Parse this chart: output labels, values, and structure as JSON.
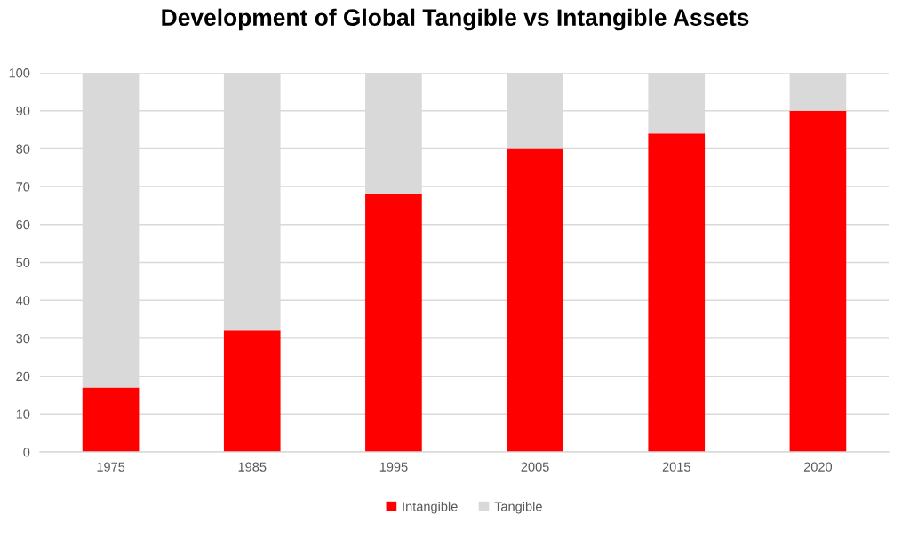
{
  "chart_data": {
    "type": "bar",
    "title": "Development of Global Tangible vs Intangible Assets",
    "categories": [
      "1975",
      "1985",
      "1995",
      "2005",
      "2015",
      "2020"
    ],
    "series": [
      {
        "name": "Intangible",
        "color": "#ff0000",
        "values": [
          17,
          32,
          68,
          80,
          84,
          90
        ]
      },
      {
        "name": "Tangible",
        "color": "#d9d9d9",
        "values": [
          83,
          68,
          32,
          20,
          16,
          10
        ]
      }
    ],
    "stacked": true,
    "ylim": [
      0,
      100
    ],
    "yticks": [
      0,
      10,
      20,
      30,
      40,
      50,
      60,
      70,
      80,
      90,
      100
    ],
    "grid": "y",
    "legend": "bottom"
  }
}
